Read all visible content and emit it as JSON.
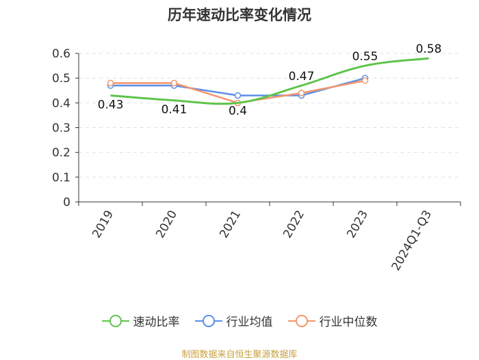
{
  "chart_data": {
    "type": "line",
    "title": "历年速动比率变化情况",
    "categories": [
      "2019",
      "2020",
      "2021",
      "2022",
      "2023",
      "2024Q1-Q3"
    ],
    "ylim": [
      0,
      0.6
    ],
    "yticks": [
      "0",
      "0.1",
      "0.2",
      "0.3",
      "0.4",
      "0.5",
      "0.6"
    ],
    "grid": true,
    "legend_position": "bottom",
    "series": [
      {
        "name": "速动比率",
        "color": "#5ec44a",
        "values": [
          0.43,
          0.41,
          0.4,
          0.47,
          0.55,
          0.58
        ],
        "labels": [
          "0.43",
          "0.41",
          "0.4",
          "0.47",
          "0.55",
          "0.58"
        ]
      },
      {
        "name": "行业均值",
        "color": "#5b8ee6",
        "values": [
          0.47,
          0.47,
          0.43,
          0.43,
          0.5,
          null
        ]
      },
      {
        "name": "行业中位数",
        "color": "#f4956a",
        "values": [
          0.48,
          0.48,
          0.4,
          0.44,
          0.49,
          null
        ]
      }
    ]
  },
  "source": "制图数据来自恒生聚源数据库"
}
